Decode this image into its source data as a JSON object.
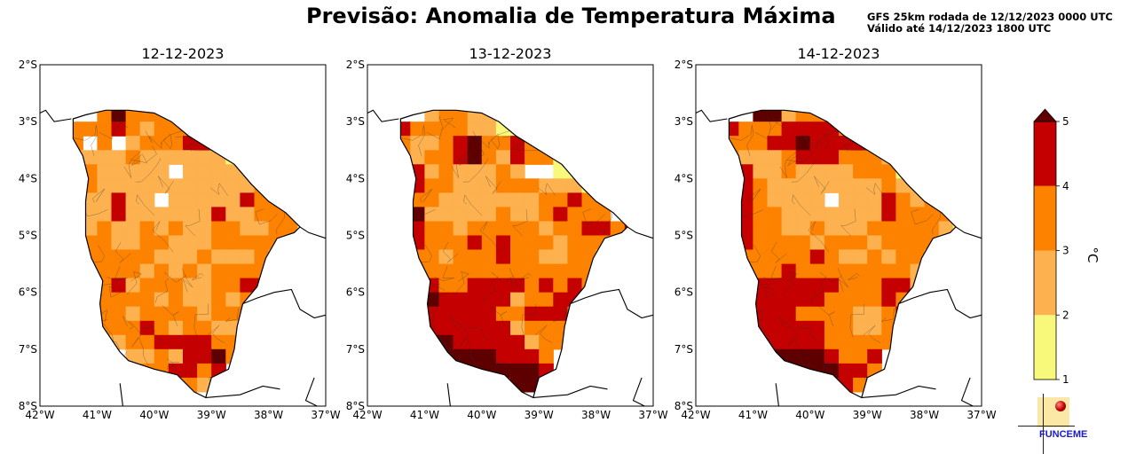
{
  "header": {
    "title": "Previsão: Anomalia de Temperatura Máxima",
    "run_line": "GFS 25km rodada de 12/12/2023 0000 UTC",
    "valid_line": "Válido até 14/12/2023 1800 UTC"
  },
  "logo": {
    "text": "FUNCEME"
  },
  "colors": {
    "blank": "#ffffff",
    "c1_2": "#f8f87a",
    "c2_3": "#fdb14f",
    "c3_4": "#fd8200",
    "c4_5": "#c40000",
    "gt5": "#5e0000"
  },
  "chart_data": {
    "type": "heatmap",
    "title": "Previsão: Anomalia de Temperatura Máxima",
    "subtitle": "GFS 25km rodada de 12/12/2023 0000 UTC / Válido até 14/12/2023 1800 UTC",
    "xlabel": "",
    "ylabel": "",
    "x_ticks": [
      "42°W",
      "41°W",
      "40°W",
      "39°W",
      "38°W",
      "37°W"
    ],
    "y_ticks": [
      "2°S",
      "3°S",
      "4°S",
      "5°S",
      "6°S",
      "7°S",
      "8°S"
    ],
    "xlim": [
      -42,
      -37
    ],
    "ylim": [
      -8,
      -2
    ],
    "grid": false,
    "grid_resolution_deg": 0.25,
    "grid_origin": {
      "lon": -41.375,
      "lat": -2.875
    },
    "colorbar": {
      "label": "°C",
      "ticks": [
        "1",
        "2",
        "3",
        "4",
        "5"
      ],
      "bounds": [
        1,
        2,
        3,
        4,
        5
      ],
      "extend": "max",
      "position": "right"
    },
    "category_legend": {
      "0": "< 1 °C (no fill)",
      "1": "1–2 °C",
      "2": "2–3 °C",
      "3": "3–4 °C",
      "4": "4–5 °C",
      "5": "> 5 °C"
    },
    "panels": [
      {
        "title": "12-12-2023",
        "rows": [
          "..3533322........",
          "3334323334443....",
          "30302333444334...",
          "2222322222212....",
          ".3222220222222....",
          ".32222222222232...",
          ".2242202222243335.",
          "22242222224223335.",
          "2232232322332233..",
          "3332233222333332..",
          "3333332223222322..",
          "3333323232333322..",
          "343423332233443...",
          "5433332322323433..",
          "34332333323334....",
          "3333343233222.....",
          "..2233444433......",
          "..20223244532.....",
          ".....334434.......",
          "......3332........"
        ]
      },
      {
        "title": "13-12-2023",
        "rows": [
          "..2332201332.....",
          "4333322111323....",
          "32234533435323...",
          "323345324331222..",
          ".4232223200111...",
          ".4332223332221...",
          ".33222222233433..",
          "352222232234333.",
          "34332333332334434",
          "4433343433323331.",
          "4332333433223322.",
          "43333333333333222",
          "4443344443434322.",
          "4454444423344433.",
          "5444444334443333.",
          "5544444423333....",
          "55554444423333...",
          ".3555554443......",
          ".4444555554.......",
          "......44554......"
        ]
      },
      {
        "title": "14-12-2023",
        "rows": [
          "..5523332........",
          "4333444432.......",
          "3334454444334....",
          "322234443332111..",
          ".42232222333111..",
          ".43222222223221..",
          ".4322220222432335",
          "2433222222243333.",
          "34332232223333321",
          "3433332333233332.",
          "4333334322323322.",
          "43334333333332222",
          "344444443334422..",
          "5444444333343332.",
          "5444433332234433.",
          "554444433223334..",
          "55444443333333...",
          ".5555554334......",
          ".5555555443......",
          "......44433......"
        ]
      }
    ]
  }
}
